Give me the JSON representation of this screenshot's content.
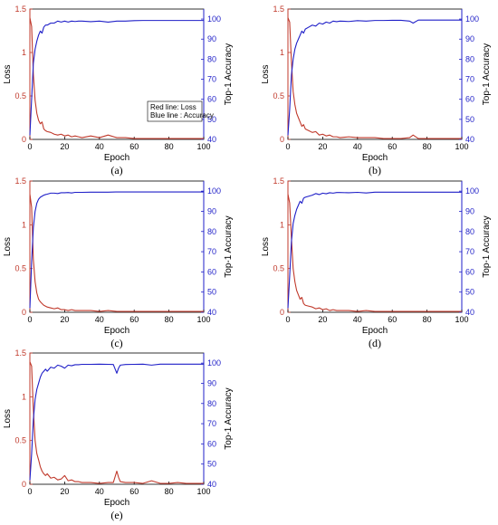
{
  "colors": {
    "loss": "#c0392b",
    "accuracy": "#1f1fc8",
    "axis": "#000000"
  },
  "legend": {
    "line1": "Red line: Loss",
    "line2": "Blue line : Accuracy",
    "panel": 0
  },
  "chart_data": [
    {
      "type": "line",
      "caption": "(a)",
      "xlabel": "Epoch",
      "ylabel_left": "Loss",
      "ylabel_right": "Top-1 Accuracy",
      "xlim": [
        0,
        100
      ],
      "ylim_left": [
        0,
        1.5
      ],
      "ylim_right": [
        40,
        105
      ],
      "xticks": [
        0,
        20,
        40,
        60,
        80,
        100
      ],
      "yticks_left": [
        0,
        0.5,
        1,
        1.5
      ],
      "yticks_right": [
        40,
        50,
        60,
        70,
        80,
        90,
        100
      ],
      "series": [
        {
          "axis": "left",
          "color": "loss",
          "x": [
            0,
            1,
            2,
            3,
            4,
            5,
            6,
            7,
            8,
            9,
            10,
            12,
            14,
            16,
            18,
            20,
            22,
            24,
            26,
            28,
            30,
            35,
            40,
            45,
            50,
            55,
            60,
            65,
            70,
            75,
            80,
            85,
            90,
            95,
            100
          ],
          "y": [
            1.4,
            1.3,
            0.75,
            0.45,
            0.3,
            0.22,
            0.18,
            0.2,
            0.12,
            0.1,
            0.09,
            0.08,
            0.06,
            0.05,
            0.06,
            0.04,
            0.05,
            0.03,
            0.04,
            0.03,
            0.02,
            0.04,
            0.02,
            0.05,
            0.02,
            0.02,
            0.01,
            0.01,
            0.01,
            0.01,
            0.01,
            0.01,
            0.01,
            0.01,
            0.01
          ]
        },
        {
          "axis": "right",
          "color": "accuracy",
          "x": [
            0,
            1,
            2,
            3,
            4,
            5,
            6,
            7,
            8,
            9,
            10,
            12,
            14,
            16,
            18,
            20,
            22,
            24,
            26,
            28,
            30,
            35,
            40,
            45,
            50,
            55,
            60,
            65,
            70,
            75,
            80,
            85,
            90,
            95,
            100
          ],
          "y": [
            42,
            60,
            78,
            85,
            89,
            92,
            94,
            93,
            96,
            97,
            97,
            98,
            98,
            99,
            98.5,
            99,
            98.5,
            99,
            98.8,
            99,
            99,
            98.7,
            99,
            98.5,
            99,
            99,
            99.2,
            99.3,
            99.3,
            99.3,
            99.3,
            99.3,
            99.3,
            99.3,
            99.3
          ]
        }
      ]
    },
    {
      "type": "line",
      "caption": "(b)",
      "xlabel": "Epoch",
      "ylabel_left": "Loss",
      "ylabel_right": "Top-1 Accuracy",
      "xlim": [
        0,
        100
      ],
      "ylim_left": [
        0,
        1.5
      ],
      "ylim_right": [
        40,
        105
      ],
      "xticks": [
        0,
        20,
        40,
        60,
        80,
        100
      ],
      "yticks_left": [
        0,
        0.5,
        1,
        1.5
      ],
      "yticks_right": [
        40,
        50,
        60,
        70,
        80,
        90,
        100
      ],
      "series": [
        {
          "axis": "left",
          "color": "loss",
          "x": [
            0,
            1,
            2,
            3,
            4,
            5,
            6,
            7,
            8,
            9,
            10,
            12,
            14,
            16,
            18,
            20,
            22,
            24,
            26,
            28,
            30,
            35,
            40,
            45,
            50,
            55,
            60,
            65,
            70,
            72,
            75,
            80,
            85,
            90,
            95,
            100
          ],
          "y": [
            1.4,
            1.35,
            0.9,
            0.55,
            0.4,
            0.3,
            0.25,
            0.2,
            0.15,
            0.17,
            0.12,
            0.1,
            0.08,
            0.09,
            0.05,
            0.06,
            0.04,
            0.05,
            0.03,
            0.03,
            0.02,
            0.03,
            0.02,
            0.02,
            0.02,
            0.01,
            0.01,
            0.01,
            0.02,
            0.05,
            0.01,
            0.01,
            0.01,
            0.01,
            0.01,
            0.01
          ]
        },
        {
          "axis": "right",
          "color": "accuracy",
          "x": [
            0,
            1,
            2,
            3,
            4,
            5,
            6,
            7,
            8,
            9,
            10,
            12,
            14,
            16,
            18,
            20,
            22,
            24,
            26,
            28,
            30,
            35,
            40,
            45,
            50,
            55,
            60,
            65,
            70,
            72,
            75,
            80,
            85,
            90,
            95,
            100
          ],
          "y": [
            42,
            55,
            72,
            80,
            85,
            88,
            90,
            92,
            94,
            93,
            95,
            96,
            97,
            96.5,
            98,
            97.5,
            98.5,
            98,
            99,
            98.7,
            99,
            98.8,
            99.2,
            99,
            99.3,
            99.3,
            99.4,
            99.4,
            99,
            98,
            99.5,
            99.5,
            99.5,
            99.5,
            99.5,
            99.5
          ]
        }
      ]
    },
    {
      "type": "line",
      "caption": "(c)",
      "xlabel": "Epoch",
      "ylabel_left": "Loss",
      "ylabel_right": "Top-1 Accuracy",
      "xlim": [
        0,
        100
      ],
      "ylim_left": [
        0,
        1.5
      ],
      "ylim_right": [
        40,
        105
      ],
      "xticks": [
        0,
        20,
        40,
        60,
        80,
        100
      ],
      "yticks_left": [
        0,
        0.5,
        1,
        1.5
      ],
      "yticks_right": [
        40,
        50,
        60,
        70,
        80,
        90,
        100
      ],
      "series": [
        {
          "axis": "left",
          "color": "loss",
          "x": [
            0,
            1,
            2,
            3,
            4,
            5,
            6,
            7,
            8,
            9,
            10,
            12,
            14,
            16,
            18,
            20,
            22,
            24,
            26,
            28,
            30,
            35,
            40,
            45,
            50,
            55,
            60,
            65,
            70,
            75,
            80,
            85,
            90,
            95,
            100
          ],
          "y": [
            1.35,
            1.2,
            0.6,
            0.35,
            0.22,
            0.15,
            0.12,
            0.1,
            0.08,
            0.07,
            0.06,
            0.05,
            0.04,
            0.05,
            0.03,
            0.03,
            0.02,
            0.03,
            0.02,
            0.02,
            0.02,
            0.02,
            0.01,
            0.02,
            0.01,
            0.01,
            0.01,
            0.01,
            0.01,
            0.01,
            0.01,
            0.01,
            0.01,
            0.01,
            0.01
          ]
        },
        {
          "axis": "right",
          "color": "accuracy",
          "x": [
            0,
            1,
            2,
            3,
            4,
            5,
            6,
            7,
            8,
            9,
            10,
            12,
            14,
            16,
            18,
            20,
            22,
            24,
            26,
            28,
            30,
            35,
            40,
            45,
            50,
            55,
            60,
            65,
            70,
            75,
            80,
            85,
            90,
            95,
            100
          ],
          "y": [
            42,
            65,
            82,
            90,
            94,
            96,
            97,
            97.5,
            98,
            98.3,
            98.5,
            99,
            99,
            98.8,
            99.2,
            99.2,
            99.3,
            99.1,
            99.4,
            99.4,
            99.4,
            99.5,
            99.5,
            99.5,
            99.6,
            99.6,
            99.6,
            99.6,
            99.6,
            99.6,
            99.6,
            99.6,
            99.6,
            99.6,
            99.6
          ]
        }
      ]
    },
    {
      "type": "line",
      "caption": "(d)",
      "xlabel": "Epoch",
      "ylabel_left": "Loss",
      "ylabel_right": "Top-1 Accuracy",
      "xlim": [
        0,
        100
      ],
      "ylim_left": [
        0,
        1.5
      ],
      "ylim_right": [
        40,
        105
      ],
      "xticks": [
        0,
        20,
        40,
        60,
        80,
        100
      ],
      "yticks_left": [
        0,
        0.5,
        1,
        1.5
      ],
      "yticks_right": [
        40,
        50,
        60,
        70,
        80,
        90,
        100
      ],
      "series": [
        {
          "axis": "left",
          "color": "loss",
          "x": [
            0,
            1,
            2,
            3,
            4,
            5,
            6,
            7,
            8,
            9,
            10,
            12,
            14,
            16,
            18,
            20,
            22,
            24,
            26,
            28,
            30,
            35,
            40,
            45,
            50,
            55,
            60,
            65,
            70,
            75,
            80,
            85,
            90,
            95,
            100
          ],
          "y": [
            1.35,
            1.25,
            0.85,
            0.5,
            0.35,
            0.25,
            0.2,
            0.15,
            0.17,
            0.1,
            0.08,
            0.07,
            0.06,
            0.04,
            0.05,
            0.03,
            0.04,
            0.02,
            0.03,
            0.02,
            0.02,
            0.02,
            0.01,
            0.02,
            0.01,
            0.01,
            0.01,
            0.01,
            0.01,
            0.01,
            0.01,
            0.01,
            0.01,
            0.01,
            0.01
          ]
        },
        {
          "axis": "right",
          "color": "accuracy",
          "x": [
            0,
            1,
            2,
            3,
            4,
            5,
            6,
            7,
            8,
            9,
            10,
            12,
            14,
            16,
            18,
            20,
            22,
            24,
            26,
            28,
            30,
            35,
            40,
            45,
            50,
            55,
            60,
            65,
            70,
            75,
            80,
            85,
            90,
            95,
            100
          ],
          "y": [
            42,
            58,
            75,
            84,
            88,
            91,
            93,
            95,
            94,
            96.5,
            97,
            97.5,
            98,
            98.8,
            98.3,
            99,
            98.7,
            99.2,
            99,
            99.3,
            99.3,
            99.2,
            99.4,
            99.1,
            99.5,
            99.5,
            99.5,
            99.5,
            99.5,
            99.5,
            99.5,
            99.5,
            99.5,
            99.5,
            99.5
          ]
        }
      ]
    },
    {
      "type": "line",
      "caption": "(e)",
      "xlabel": "Epoch",
      "ylabel_left": "Loss",
      "ylabel_right": "Top-1 Accuracy",
      "xlim": [
        0,
        100
      ],
      "ylim_left": [
        0,
        1.5
      ],
      "ylim_right": [
        40,
        105
      ],
      "xticks": [
        0,
        20,
        40,
        60,
        80,
        100
      ],
      "yticks_left": [
        0,
        0.5,
        1,
        1.5
      ],
      "yticks_right": [
        40,
        50,
        60,
        70,
        80,
        90,
        100
      ],
      "series": [
        {
          "axis": "left",
          "color": "loss",
          "x": [
            0,
            1,
            2,
            3,
            4,
            5,
            6,
            7,
            8,
            9,
            10,
            12,
            14,
            16,
            18,
            20,
            22,
            24,
            26,
            28,
            30,
            35,
            40,
            45,
            48,
            50,
            51,
            52,
            55,
            60,
            65,
            70,
            75,
            80,
            85,
            90,
            95,
            100
          ],
          "y": [
            1.4,
            1.35,
            0.85,
            0.5,
            0.35,
            0.28,
            0.2,
            0.15,
            0.12,
            0.1,
            0.12,
            0.07,
            0.08,
            0.05,
            0.06,
            0.1,
            0.04,
            0.05,
            0.03,
            0.03,
            0.02,
            0.02,
            0.01,
            0.02,
            0.02,
            0.15,
            0.08,
            0.03,
            0.02,
            0.02,
            0.01,
            0.04,
            0.01,
            0.01,
            0.02,
            0.01,
            0.01,
            0.01
          ]
        },
        {
          "axis": "right",
          "color": "accuracy",
          "x": [
            0,
            1,
            2,
            3,
            4,
            5,
            6,
            7,
            8,
            9,
            10,
            12,
            14,
            16,
            18,
            20,
            22,
            24,
            26,
            28,
            30,
            35,
            40,
            45,
            48,
            50,
            51,
            52,
            55,
            60,
            65,
            70,
            75,
            80,
            85,
            90,
            95,
            100
          ],
          "y": [
            42,
            55,
            72,
            82,
            87,
            90,
            93,
            95,
            96,
            97,
            96,
            98,
            97.5,
            99,
            98.5,
            97.5,
            99,
            98.7,
            99.2,
            99.2,
            99.4,
            99.4,
            99.5,
            99.4,
            99.3,
            95,
            97.5,
            99,
            99.3,
            99.4,
            99.5,
            99,
            99.5,
            99.5,
            99.5,
            99.5,
            99.5,
            99.5
          ]
        }
      ]
    }
  ]
}
